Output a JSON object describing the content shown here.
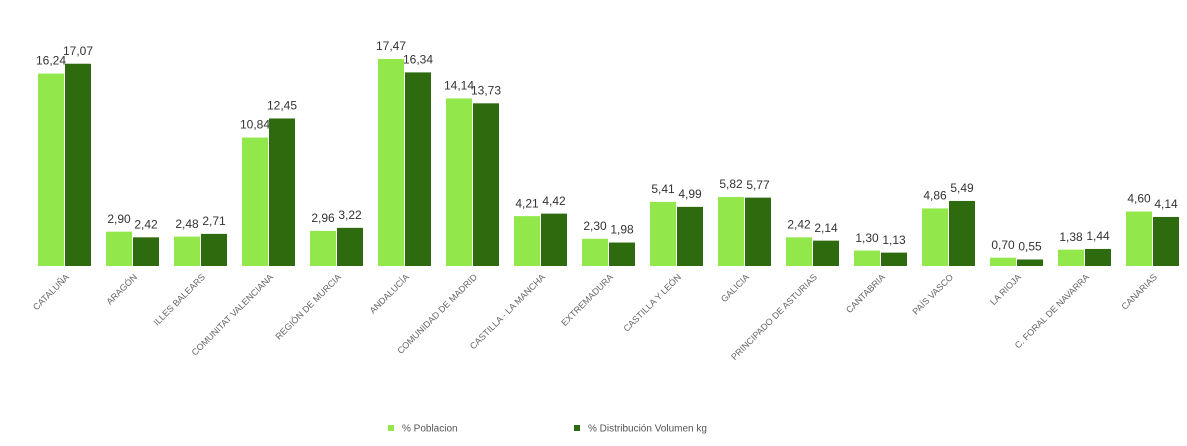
{
  "chart_data": {
    "type": "bar",
    "categories": [
      "CATALUÑA",
      "ARAGÓN",
      "ILLES BALEARS",
      "COMUNITAT VALENCIANA",
      "REGIÓN DE MURCIA",
      "ANDALUCÍA",
      "COMUNIDAD DE MADRID",
      "CASTILLA - LA MANCHA",
      "EXTREMADURA",
      "CASTILLA Y LEÓN",
      "GALICIA",
      "PRINCIPADO DE ASTURIAS",
      "CANTABRIA",
      "PAÍS VASCO",
      "LA RIOJA",
      "C. FORAL DE NAVARRA",
      "CANARIAS"
    ],
    "series": [
      {
        "name": "% Poblacion",
        "color": "#92e84a",
        "values": [
          16.24,
          2.9,
          2.48,
          10.84,
          2.96,
          17.47,
          14.14,
          4.21,
          2.3,
          5.41,
          5.82,
          2.42,
          1.3,
          4.86,
          0.7,
          1.38,
          4.6
        ],
        "value_labels": [
          "16,24",
          "2,90",
          "2,48",
          "10,84",
          "2,96",
          "17,47",
          "14,14",
          "4,21",
          "2,30",
          "5,41",
          "5,82",
          "2,42",
          "1,30",
          "4,86",
          "0,70",
          "1,38",
          "4,60"
        ]
      },
      {
        "name": "% Distribución Volumen kg",
        "color": "#2e6b0e",
        "values": [
          17.07,
          2.42,
          2.71,
          12.45,
          3.22,
          16.34,
          13.73,
          4.42,
          1.98,
          4.99,
          5.77,
          2.14,
          1.13,
          5.49,
          0.55,
          1.44,
          4.14
        ],
        "value_labels": [
          "17,07",
          "2,42",
          "2,71",
          "12,45",
          "3,22",
          "16,34",
          "13,73",
          "4,42",
          "1,98",
          "4,99",
          "5,77",
          "2,14",
          "1,13",
          "5,49",
          "0,55",
          "1,44",
          "4,14"
        ]
      }
    ]
  }
}
